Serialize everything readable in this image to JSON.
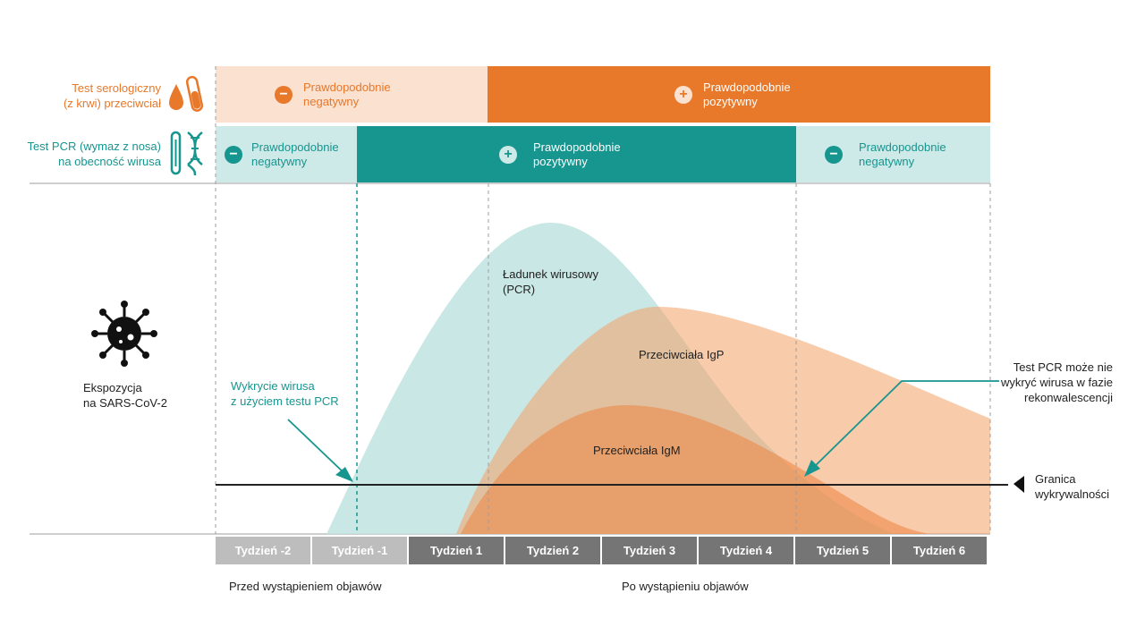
{
  "rows": {
    "serology_label": [
      "Test serologiczny",
      "(z krwi) przeciwciał"
    ],
    "pcr_label": [
      "Test PCR (wymaz z nosa)",
      "na obecność wirusa"
    ]
  },
  "serology_bands": [
    {
      "sign": "−",
      "text": [
        "Prawdopodobnie",
        "negatywny"
      ]
    },
    {
      "sign": "+",
      "text": [
        "Prawdopodobnie",
        "pozytywny"
      ]
    }
  ],
  "pcr_bands": [
    {
      "sign": "−",
      "text": [
        "Prawdopodobnie",
        "negatywny"
      ]
    },
    {
      "sign": "+",
      "text": [
        "Prawdopodobnie",
        "pozytywny"
      ]
    },
    {
      "sign": "−",
      "text": [
        "Prawdopodobnie",
        "negatywny"
      ]
    }
  ],
  "exposure": [
    "Ekspozycja",
    "na SARS-CoV-2"
  ],
  "detection_note": [
    "Wykrycie wirusa",
    "z użyciem testu PCR"
  ],
  "curve_labels": {
    "viral_load": [
      "Ładunek wirusowy",
      "(PCR)"
    ],
    "igp": "Przeciwciała IgP",
    "igm": "Przeciwciała IgM"
  },
  "pcr_recovery_note": [
    "Test PCR może nie",
    "wykryć wirusa w fazie",
    "rekonwalescencji"
  ],
  "detection_limit": [
    "Granica",
    "wykrywalności"
  ],
  "weeks": [
    "Tydzień -2",
    "Tydzień -1",
    "Tydzień 1",
    "Tydzień 2",
    "Tydzień 3",
    "Tydzień 4",
    "Tydzień 5",
    "Tydzień 6"
  ],
  "phases": {
    "before": "Przed wystąpieniem objawów",
    "after": "Po wystąpieniu objawów"
  },
  "colors": {
    "orange": "#e8782a",
    "light_orange": "#fbe1d0",
    "teal": "#17958f",
    "light_teal": "#cde9e8",
    "viral_fill": "#bfe3e1",
    "week_before": "#bdbdbd",
    "week_after": "#757575"
  }
}
